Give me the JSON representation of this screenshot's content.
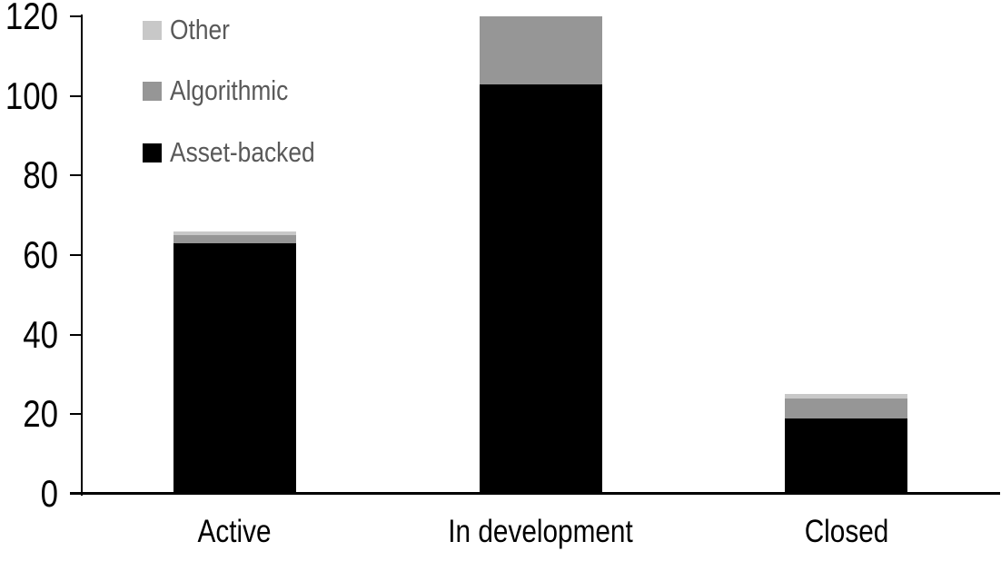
{
  "chart_data": {
    "type": "bar",
    "stacked": true,
    "title": "",
    "xlabel": "",
    "ylabel": "",
    "grid": false,
    "categories": [
      "Active",
      "In development",
      "Closed"
    ],
    "series": [
      {
        "name": "Asset-backed",
        "color": "#000000",
        "values": [
          63,
          103,
          19
        ]
      },
      {
        "name": "Algorithmic",
        "color": "#969696",
        "values": [
          2,
          17,
          5
        ]
      },
      {
        "name": "Other",
        "color": "#c8c8c8",
        "values": [
          1,
          0,
          1
        ]
      }
    ],
    "y_axis": {
      "min": 0,
      "max": 120,
      "step": 20,
      "tick_labels": [
        "0",
        "20",
        "40",
        "60",
        "80",
        "100",
        "120"
      ]
    },
    "legend": {
      "position": "top-left",
      "order_top_to_bottom": [
        "Other",
        "Algorithmic",
        "Asset-backed"
      ]
    }
  },
  "colors": {
    "axis": "#000000",
    "axis_text": "#000000",
    "legend_text": "#595959",
    "background": "#ffffff"
  }
}
